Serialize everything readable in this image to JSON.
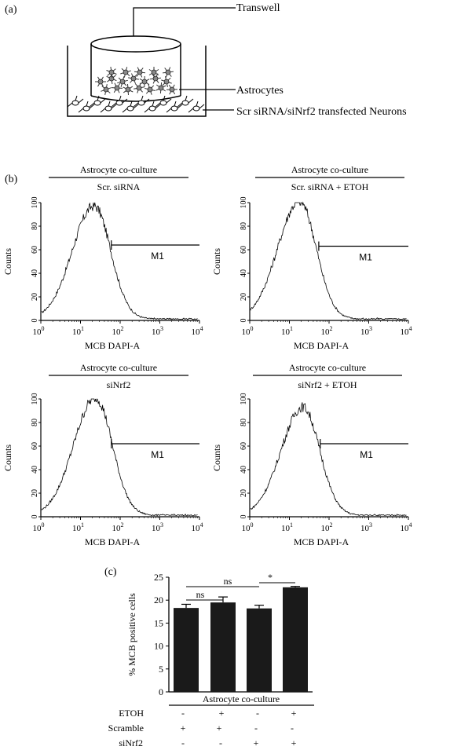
{
  "panel_a": {
    "label": "(a)",
    "transwell": "Transwell",
    "astrocytes": "Astrocytes",
    "neurons": "Scr siRNA/siNrf2 transfected Neurons"
  },
  "panel_b": {
    "label": "(b)",
    "ylabel": "Counts",
    "xlabel": "MCB DAPI-A",
    "marker": "M1",
    "y_ticks": [
      "0",
      "20",
      "40",
      "60",
      "80",
      "100"
    ],
    "x_ticks": [
      {
        "base": "10",
        "exp": "0"
      },
      {
        "base": "10",
        "exp": "1"
      },
      {
        "base": "10",
        "exp": "2"
      },
      {
        "base": "10",
        "exp": "3"
      },
      {
        "base": "10",
        "exp": "4"
      }
    ],
    "histograms": [
      {
        "header": "Astrocyte co-culture",
        "subheader": "Scr. siRNA"
      },
      {
        "header": "Astrocyte co-culture",
        "subheader": "Scr. siRNA + ETOH"
      },
      {
        "header": "Astrocyte co-culture",
        "subheader": "siNrf2"
      },
      {
        "header": "Astrocyte co-culture",
        "subheader": "siNrf2 + ETOH"
      }
    ]
  },
  "panel_c": {
    "label": "(c)",
    "group_label": "Astrocyte co-culture",
    "sig_labels": [
      "ns",
      "ns",
      "*"
    ],
    "conditions": [
      {
        "name": "ETOH",
        "values": [
          "-",
          "+",
          "-",
          "+"
        ]
      },
      {
        "name": "Scramble",
        "values": [
          "+",
          "+",
          "-",
          "-"
        ]
      },
      {
        "name": "siNrf2",
        "values": [
          "-",
          "-",
          "+",
          "+"
        ]
      }
    ]
  },
  "chart_data": [
    {
      "type": "area",
      "title": "Astrocyte co-culture",
      "subtitle": "Scr. siRNA",
      "xlabel": "MCB DAPI-A",
      "ylabel": "Counts",
      "xscale": "log",
      "xlim": [
        1,
        10000
      ],
      "ylim": [
        0,
        100
      ],
      "peak_x": 22,
      "peak_y": 96,
      "marker": "M1",
      "marker_range": [
        60,
        10000
      ],
      "marker_y": 64
    },
    {
      "type": "area",
      "title": "Astrocyte co-culture",
      "subtitle": "Scr. siRNA + ETOH",
      "xlabel": "MCB DAPI-A",
      "ylabel": "Counts",
      "xscale": "log",
      "xlim": [
        1,
        10000
      ],
      "ylim": [
        0,
        100
      ],
      "peak_x": 18,
      "peak_y": 100,
      "marker": "M1",
      "marker_range": [
        55,
        10000
      ],
      "marker_y": 63
    },
    {
      "type": "area",
      "title": "Astrocyte co-culture",
      "subtitle": "siNrf2",
      "xlabel": "MCB DAPI-A",
      "ylabel": "Counts",
      "xscale": "log",
      "xlim": [
        1,
        10000
      ],
      "ylim": [
        0,
        100
      ],
      "peak_x": 24,
      "peak_y": 100,
      "marker": "M1",
      "marker_range": [
        60,
        10000
      ],
      "marker_y": 62
    },
    {
      "type": "area",
      "title": "Astrocyte co-culture",
      "subtitle": "siNrf2 + ETOH",
      "xlabel": "MCB DAPI-A",
      "ylabel": "Counts",
      "xscale": "log",
      "xlim": [
        1,
        10000
      ],
      "ylim": [
        0,
        100
      ],
      "peak_x": 22,
      "peak_y": 92,
      "marker": "M1",
      "marker_range": [
        60,
        10000
      ],
      "marker_y": 62
    },
    {
      "type": "bar",
      "title": "",
      "xlabel": "Astrocyte co-culture",
      "ylabel": "% MCB positive cells",
      "ylim": [
        0,
        25
      ],
      "yticks": [
        0,
        5,
        10,
        15,
        20,
        25
      ],
      "categories": [
        "ETOH - / Scramble + / siNrf2 -",
        "ETOH + / Scramble + / siNrf2 -",
        "ETOH - / Scramble - / siNrf2 +",
        "ETOH + / Scramble - / siNrf2 +"
      ],
      "values": [
        18.3,
        19.5,
        18.2,
        22.8
      ],
      "errors": [
        0.8,
        1.2,
        0.7,
        0.2
      ],
      "bar_color": "#1a1a1a"
    }
  ]
}
